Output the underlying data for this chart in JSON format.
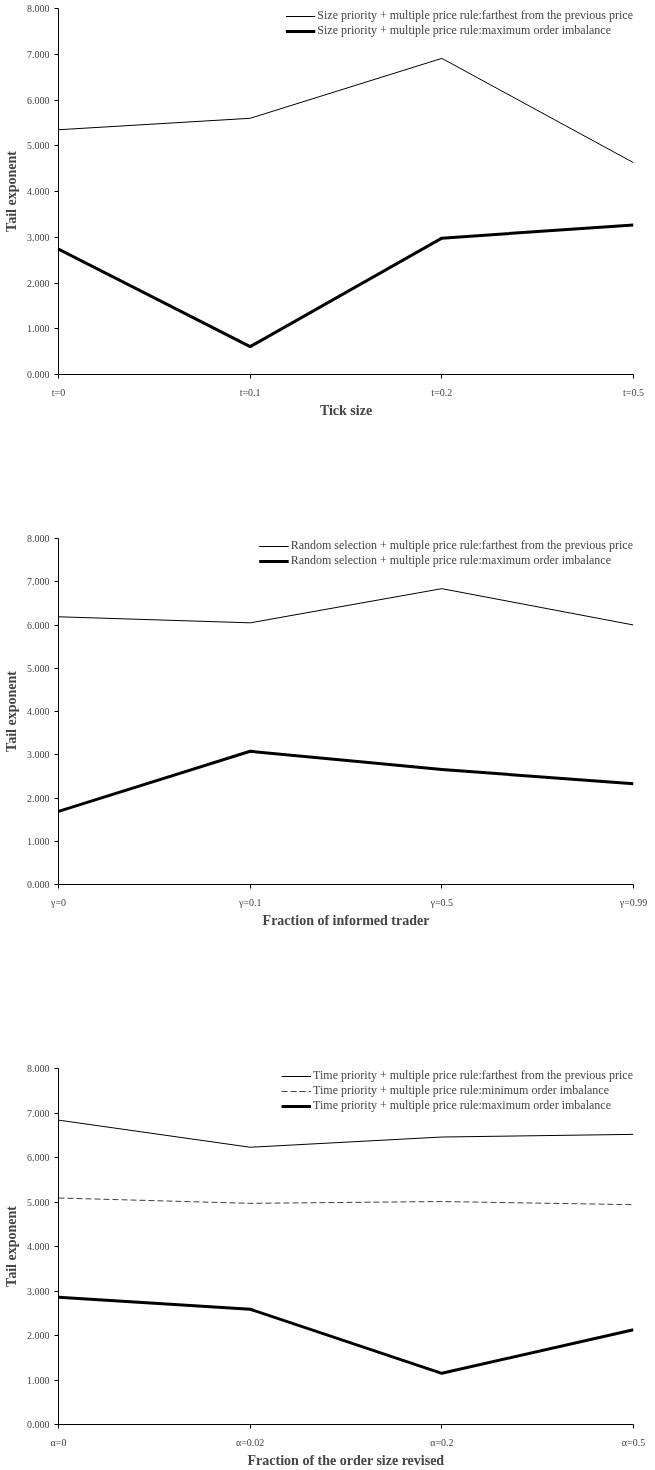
{
  "chart_data": [
    {
      "type": "line",
      "categories": [
        "t=0",
        "t=0.1",
        "t=0.2",
        "t=0.5"
      ],
      "xlabel": "Tick size",
      "ylabel": "Tail exponent",
      "ylim": [
        0,
        8
      ],
      "yticks": [
        {
          "value": 0,
          "label": "0.000"
        },
        {
          "value": 1,
          "label": "1.000"
        },
        {
          "value": 2,
          "label": "2.000"
        },
        {
          "value": 3,
          "label": "3.000"
        },
        {
          "value": 4,
          "label": "4.000"
        },
        {
          "value": 5,
          "label": "5.000"
        },
        {
          "value": 6,
          "label": "6.000"
        },
        {
          "value": 7,
          "label": "7.000"
        },
        {
          "value": 8,
          "label": "8.000"
        }
      ],
      "grid": false,
      "legend": "top right",
      "marker": "none",
      "series": [
        {
          "name": "Size priority + multiple price rule:farthest from the previous price",
          "color": "#000000",
          "line_style": "solid",
          "values": [
            5.35,
            5.6,
            6.91,
            4.63
          ]
        },
        {
          "name": "Size priority + multiple price rule:maximum order imbalance",
          "color": "#000000",
          "line_style": "solid",
          "values": [
            2.74,
            0.61,
            2.98,
            3.27
          ]
        }
      ]
    },
    {
      "type": "line",
      "categories": [
        "γ=0",
        "γ=0.1",
        "γ=0.5",
        "γ=0.99"
      ],
      "xlabel": "Fraction of informed trader",
      "ylabel": "Tail exponent",
      "ylim": [
        0,
        8
      ],
      "yticks": [
        {
          "value": 0,
          "label": "0.000"
        },
        {
          "value": 1,
          "label": "1.000"
        },
        {
          "value": 2,
          "label": "2.000"
        },
        {
          "value": 3,
          "label": "3.000"
        },
        {
          "value": 4,
          "label": "4.000"
        },
        {
          "value": 5,
          "label": "5.000"
        },
        {
          "value": 6,
          "label": "6.000"
        },
        {
          "value": 7,
          "label": "7.000"
        },
        {
          "value": 8,
          "label": "8.000"
        }
      ],
      "grid": false,
      "legend": "top right",
      "marker": "none",
      "series": [
        {
          "name": "Random selection + multiple price rule:farthest from the previous price",
          "color": "#000000",
          "line_style": "solid",
          "values": [
            6.19,
            6.05,
            6.84,
            6.0
          ]
        },
        {
          "name": "Random selection + multiple price rule:maximum order imbalance",
          "color": "#000000",
          "line_style": "solid",
          "values": [
            1.69,
            3.08,
            2.66,
            2.33
          ]
        }
      ]
    },
    {
      "type": "line",
      "categories": [
        "α=0",
        "α=0.02",
        "α=0.2",
        "α=0.5"
      ],
      "xlabel": "Fraction of the order size revised",
      "ylabel": "Tail exponent",
      "ylim": [
        0,
        8
      ],
      "yticks": [
        {
          "value": 0,
          "label": "0.000"
        },
        {
          "value": 1,
          "label": "1.000"
        },
        {
          "value": 2,
          "label": "2.000"
        },
        {
          "value": 3,
          "label": "3.000"
        },
        {
          "value": 4,
          "label": "4.000"
        },
        {
          "value": 5,
          "label": "5.000"
        },
        {
          "value": 6,
          "label": "6.000"
        },
        {
          "value": 7,
          "label": "7.000"
        },
        {
          "value": 8,
          "label": "8.000"
        }
      ],
      "grid": false,
      "legend": "top right",
      "marker": "none",
      "series": [
        {
          "name": "Time priority + multiple price rule:farthest from the previous price",
          "color": "#000000",
          "line_style": "solid",
          "values": [
            6.84,
            6.23,
            6.46,
            6.52
          ]
        },
        {
          "name": "Time priority + multiple price rule:minimum order imbalance",
          "color": "#404040",
          "line_style": "dashed",
          "values": [
            5.09,
            4.97,
            5.01,
            4.94
          ]
        },
        {
          "name": "Time priority + multiple price rule:maximum order imbalance",
          "color": "#000000",
          "line_style": "solid",
          "values": [
            2.86,
            2.59,
            1.15,
            2.13
          ]
        }
      ]
    }
  ]
}
